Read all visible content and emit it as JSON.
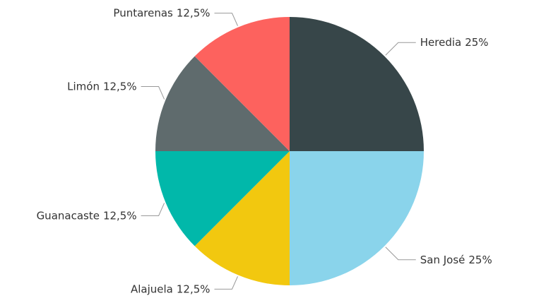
{
  "chart_data": {
    "type": "pie",
    "categories": [
      "Heredia",
      "San José",
      "Alajuela",
      "Guanacaste",
      "Limón",
      "Puntarenas"
    ],
    "values": [
      25,
      25,
      12.5,
      12.5,
      12.5,
      12.5
    ],
    "value_labels": [
      "25%",
      "25%",
      "12,5%",
      "12,5%",
      "12,5%",
      "12,5%"
    ],
    "colors": [
      "#374649",
      "#8ad4eb",
      "#f2c80f",
      "#01b8aa",
      "#5f6b6d",
      "#fd625e"
    ]
  }
}
